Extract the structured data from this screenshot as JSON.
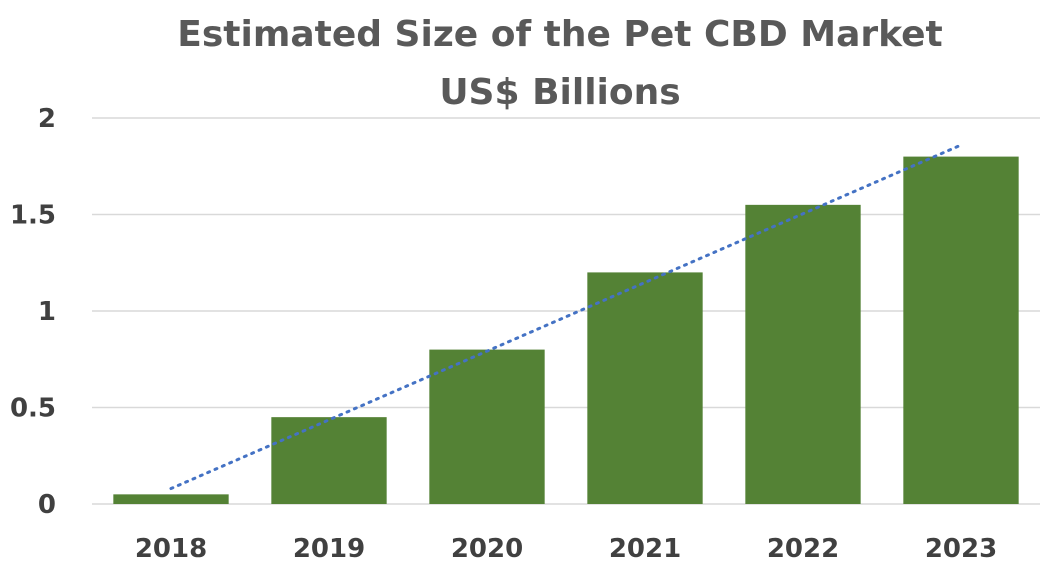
{
  "chart_data": {
    "type": "bar",
    "title": "Estimated Size of the Pet CBD Market",
    "subtitle": "US$ Billions",
    "categories": [
      "2018",
      "2019",
      "2020",
      "2021",
      "2022",
      "2023"
    ],
    "values": [
      0.05,
      0.45,
      0.8,
      1.2,
      1.55,
      1.8
    ],
    "ylim": [
      0,
      2
    ],
    "yticks": [
      "0",
      "0.5",
      "1",
      "1.5",
      "2"
    ],
    "ytick_values": [
      0,
      0.5,
      1,
      1.5,
      2
    ],
    "grid": true,
    "trendline": {
      "type": "linear",
      "style": "dotted",
      "start_value": 0.08,
      "end_value": 1.86
    },
    "colors": {
      "bar": "#548235",
      "trendline": "#4472c4",
      "grid": "#d9d9d9",
      "title": "#595959",
      "ticks": "#404040"
    }
  }
}
